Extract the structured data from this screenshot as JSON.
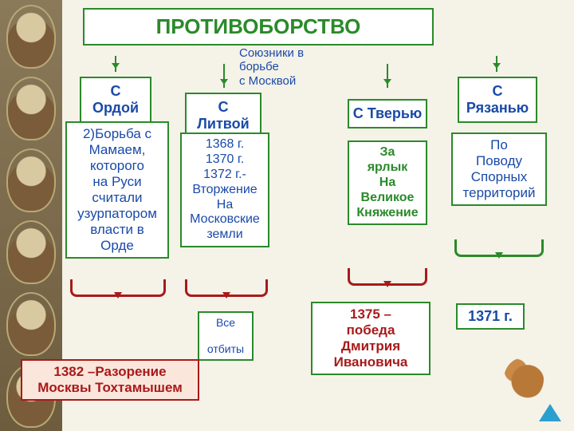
{
  "title": "ПРОТИВОБОРСТВО",
  "allies_label": "Союзники в борьбе\nс Москвой",
  "columns": {
    "orda": {
      "label": "С\nОрдой"
    },
    "litva": {
      "label": "С\nЛитвой"
    },
    "tver": {
      "label": "С Тверью"
    },
    "ryazan": {
      "label": "С\nРязанью"
    }
  },
  "orda_body": "2)Борьба с\nМамаем,\nкоторого\nна Руси\nсчитали\nузурпатором\nвласти в\nОрде",
  "litva_body": "1368 г.\n1370 г.\n1372 г.-\nВторжение\nНа\nМосковские\nземли",
  "litva_result": "Все\n\nотбиты",
  "tver_body": "За\nярлык\nНа\nВеликое\nКняжение",
  "tver_result": "1375 –\nпобеда\nДмитрия\nИвановича",
  "ryazan_body": "По\nПоводу\nСпорных\nтерриторий",
  "ryazan_result": "1371 г.",
  "orda_result": "1382 –Разорение\nМосквы Тохтамышем",
  "colors": {
    "green": "#2a8a2a",
    "blue": "#1a4aa8",
    "red": "#a81a1a",
    "bg": "#f5f2e8"
  }
}
